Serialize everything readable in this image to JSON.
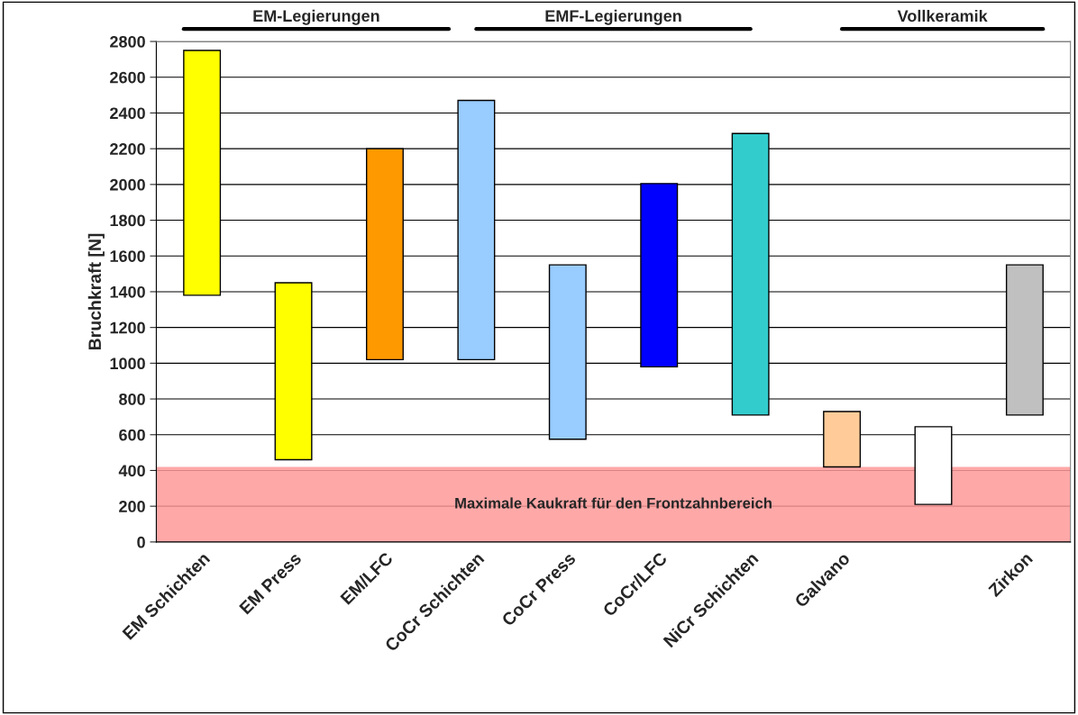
{
  "chart_data": {
    "type": "bar",
    "ylabel": "Bruchkraft [N]",
    "categories": [
      "EM Schichten",
      "EM Press",
      "EM/LFC",
      "CoCr Schichten",
      "CoCr Press",
      "CoCr/LFC",
      "NiCr Schichten",
      "Galvano",
      null,
      "Zirkon"
    ],
    "base": [
      1380,
      460,
      1020,
      1020,
      575,
      980,
      710,
      420,
      210,
      710
    ],
    "values": [
      1370,
      990,
      1180,
      1450,
      975,
      1025,
      1575,
      310,
      435,
      840
    ],
    "colors": [
      "#ffff00",
      "#ffff00",
      "#ff9900",
      "#99ccff",
      "#99ccff",
      "#0000ff",
      "#33cccc",
      "#ffcc99",
      "#ffffff",
      "#c0c0c0"
    ],
    "ylim": [
      0,
      2800
    ],
    "yticks": [
      0,
      200,
      400,
      600,
      800,
      1000,
      1200,
      1400,
      1600,
      1800,
      2000,
      2200,
      2400,
      2600,
      2800
    ],
    "grid": "y",
    "bands": [
      {
        "axis": "y",
        "from": 0,
        "to": 420,
        "label": "Maximale Kaukraft für den Frontzahnbereich",
        "color": "#ff9999"
      }
    ],
    "annotations": [
      "EM-Legierungen",
      "EMF-Legierungen",
      "Vollkeramik"
    ]
  }
}
